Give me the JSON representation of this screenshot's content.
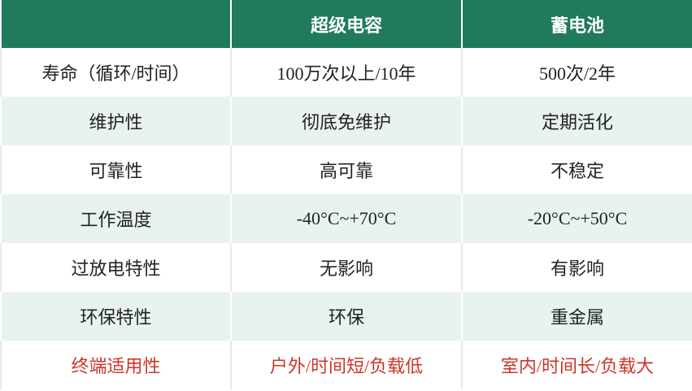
{
  "table": {
    "header": [
      "超级电容",
      "蓄电池"
    ],
    "rows": [
      [
        "寿命（循环/时间）",
        "100万次以上/10年",
        "500次/2年"
      ],
      [
        "维护性",
        "彻底免维护",
        "定期活化"
      ],
      [
        "可靠性",
        "高可靠",
        "不稳定"
      ],
      [
        "工作温度",
        "-40°C~+70°C",
        "-20°C~+50°C"
      ],
      [
        "过放电特性",
        "无影响",
        "有影响"
      ],
      [
        "环保特性",
        "环保",
        "重金属"
      ],
      [
        "终端适用性",
        "户外/时间短/负载低",
        "室内/时间长/负载大"
      ]
    ]
  }
}
